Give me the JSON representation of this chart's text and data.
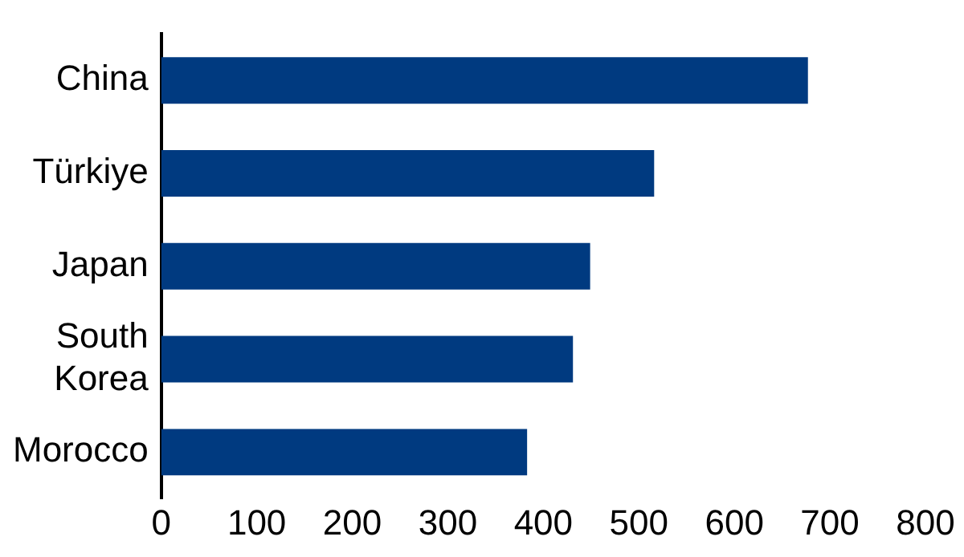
{
  "chart_data": {
    "type": "bar",
    "orientation": "horizontal",
    "categories": [
      "China",
      "Türkiye",
      "Japan",
      "South Korea",
      "Morocco"
    ],
    "values": [
      677,
      516,
      449,
      431,
      383
    ],
    "color": "#003a80",
    "xlim": [
      0,
      800
    ],
    "xticks": [
      0,
      100,
      200,
      300,
      400,
      500,
      600,
      700,
      800
    ],
    "grid": false,
    "legend": false
  }
}
